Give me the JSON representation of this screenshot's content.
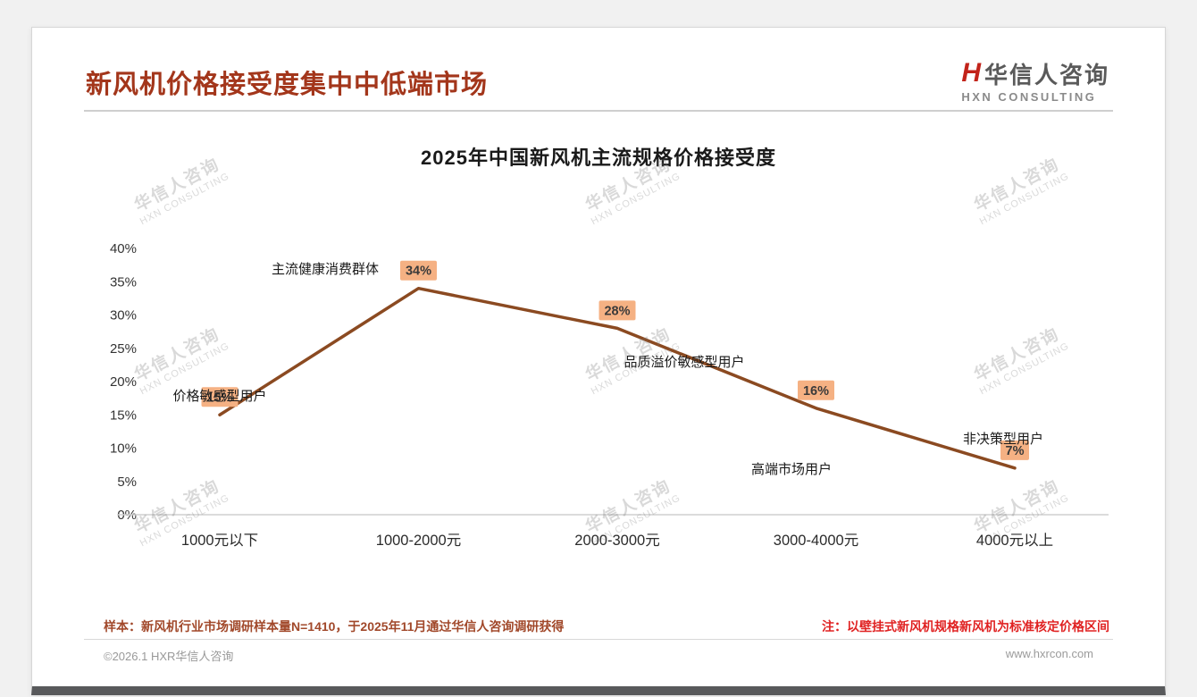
{
  "page": {
    "title": "新风机价格接受度集中中低端市场",
    "logo": {
      "mark": "H",
      "name": "华信人咨询",
      "sub": "HXN CONSULTING"
    },
    "watermark": {
      "line1": "华信人咨询",
      "line2": "HXN CONSULTING"
    },
    "footer": {
      "sample_note": "样本：新风机行业市场调研样本量N=1410，于2025年11月通过华信人咨询调研获得",
      "price_note": "注：以壁挂式新风机规格新风机为标准核定价格区间",
      "copyright": "©2026.1 HXR华信人咨询",
      "website": "www.hxrcon.com"
    }
  },
  "chart_data": {
    "type": "line",
    "title": "2025年中国新风机主流规格价格接受度",
    "categories": [
      "1000元以下",
      "1000-2000元",
      "2000-3000元",
      "3000-4000元",
      "4000元以上"
    ],
    "values": [
      15,
      34,
      28,
      16,
      7
    ],
    "value_labels": [
      "15%",
      "34%",
      "28%",
      "16%",
      "7%"
    ],
    "annotations": [
      "价格敏感型用户",
      "主流健康消费群体",
      "品质溢价敏感型用户",
      "高端市场用户",
      "非决策型用户"
    ],
    "ylabel": "",
    "xlabel": "",
    "ylim": [
      0,
      40
    ],
    "ytick_step": 5,
    "grid": false,
    "legend": "none",
    "line_color": "#8b4a21",
    "label_bg": "#f5b183",
    "label_text_color": "#3a3a3a",
    "axis_color": "#cfcfcf",
    "tick_text_color": "#333333"
  }
}
